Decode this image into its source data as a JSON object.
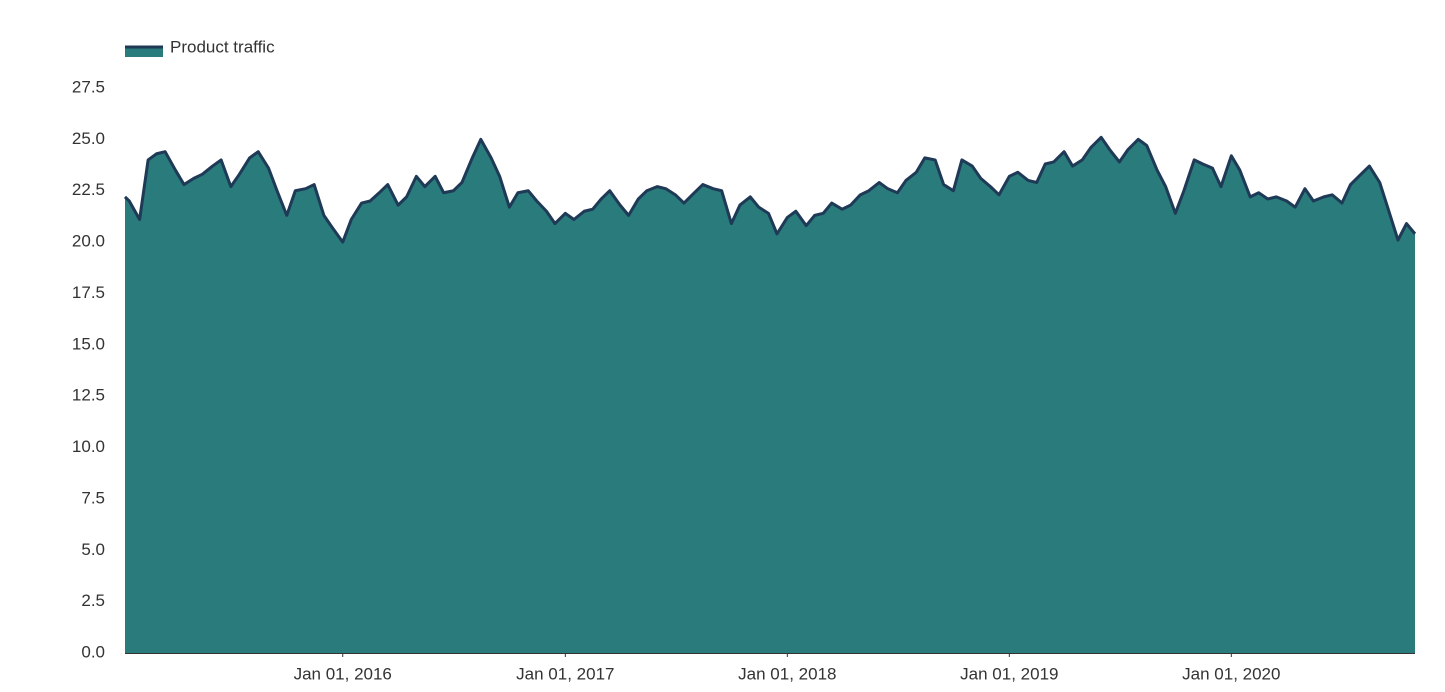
{
  "chart_data": {
    "type": "area",
    "legend": "top-left",
    "ylim": [
      0,
      27.5
    ],
    "yticks": [
      {
        "value": 0,
        "label": "0.0"
      },
      2.5,
      {
        "value": 5,
        "label": "5.0"
      },
      7.5,
      {
        "value": 10,
        "label": "10.0"
      },
      12.5,
      {
        "value": 15,
        "label": "15.0"
      },
      17.5,
      {
        "value": 20,
        "label": "20.0"
      },
      22.5,
      {
        "value": 25,
        "label": "25.0"
      },
      27.5
    ],
    "xlim": [
      "2015-01-08",
      "2020-10-29"
    ],
    "xticks": [
      {
        "value": "2016-01-01",
        "label": "Jan 01, 2016"
      },
      {
        "value": "2017-01-01",
        "label": "Jan 01, 2017"
      },
      {
        "value": "2018-01-01",
        "label": "Jan 01, 2018"
      },
      {
        "value": "2019-01-01",
        "label": "Jan 01, 2019"
      },
      {
        "value": "2020-01-01",
        "label": "Jan 01, 2020"
      }
    ],
    "x": [
      "2015-01-08",
      "2015-01-15",
      "2015-02-01",
      "2015-02-15",
      "2015-03-01",
      "2015-03-15",
      "2015-04-01",
      "2015-04-15",
      "2015-05-01",
      "2015-05-15",
      "2015-06-01",
      "2015-06-15",
      "2015-07-01",
      "2015-07-15",
      "2015-08-01",
      "2015-08-15",
      "2015-09-01",
      "2015-09-15",
      "2015-10-01",
      "2015-10-15",
      "2015-11-01",
      "2015-11-15",
      "2015-12-01",
      "2015-12-15",
      "2016-01-01",
      "2016-01-15",
      "2016-02-01",
      "2016-02-15",
      "2016-03-01",
      "2016-03-15",
      "2016-04-01",
      "2016-04-15",
      "2016-05-01",
      "2016-05-15",
      "2016-06-01",
      "2016-06-15",
      "2016-07-01",
      "2016-07-15",
      "2016-08-01",
      "2016-08-15",
      "2016-09-01",
      "2016-09-15",
      "2016-10-01",
      "2016-10-15",
      "2016-11-01",
      "2016-11-15",
      "2016-12-01",
      "2016-12-15",
      "2017-01-01",
      "2017-01-15",
      "2017-02-01",
      "2017-02-15",
      "2017-03-01",
      "2017-03-15",
      "2017-04-01",
      "2017-04-15",
      "2017-05-01",
      "2017-05-15",
      "2017-06-01",
      "2017-06-15",
      "2017-07-01",
      "2017-07-15",
      "2017-08-01",
      "2017-08-15",
      "2017-09-01",
      "2017-09-15",
      "2017-10-01",
      "2017-10-15",
      "2017-11-01",
      "2017-11-15",
      "2017-12-01",
      "2017-12-15",
      "2018-01-01",
      "2018-01-15",
      "2018-02-01",
      "2018-02-15",
      "2018-03-01",
      "2018-03-15",
      "2018-04-01",
      "2018-04-15",
      "2018-05-01",
      "2018-05-15",
      "2018-06-01",
      "2018-06-15",
      "2018-07-01",
      "2018-07-15",
      "2018-08-01",
      "2018-08-15",
      "2018-09-01",
      "2018-09-15",
      "2018-10-01",
      "2018-10-15",
      "2018-11-01",
      "2018-11-15",
      "2018-12-01",
      "2018-12-15",
      "2019-01-01",
      "2019-01-15",
      "2019-02-01",
      "2019-02-15",
      "2019-03-01",
      "2019-03-15",
      "2019-04-01",
      "2019-04-15",
      "2019-05-01",
      "2019-05-15",
      "2019-06-01",
      "2019-06-15",
      "2019-07-01",
      "2019-07-15",
      "2019-08-01",
      "2019-08-15",
      "2019-09-01",
      "2019-09-15",
      "2019-10-01",
      "2019-10-15",
      "2019-11-01",
      "2019-11-15",
      "2019-12-01",
      "2019-12-15",
      "2020-01-01",
      "2020-01-15",
      "2020-02-01",
      "2020-02-15",
      "2020-03-01",
      "2020-03-15",
      "2020-04-01",
      "2020-04-15",
      "2020-05-01",
      "2020-05-15",
      "2020-06-01",
      "2020-06-15",
      "2020-07-01",
      "2020-07-15",
      "2020-08-01",
      "2020-08-15",
      "2020-09-01",
      "2020-09-15",
      "2020-10-01",
      "2020-10-15",
      "2020-10-29"
    ],
    "series": [
      {
        "name": "Product traffic",
        "color": "#2a7b7b",
        "line_color": "#1e3a56",
        "values": [
          22.2,
          22.0,
          21.1,
          24.0,
          24.3,
          24.4,
          23.5,
          22.8,
          23.1,
          23.3,
          23.7,
          24.0,
          22.7,
          23.3,
          24.1,
          24.4,
          23.6,
          22.5,
          21.3,
          22.5,
          22.6,
          22.8,
          21.3,
          20.7,
          20.0,
          21.1,
          21.9,
          22.0,
          22.4,
          22.8,
          21.8,
          22.2,
          23.2,
          22.7,
          23.2,
          22.4,
          22.5,
          22.9,
          24.1,
          25.0,
          24.1,
          23.2,
          21.7,
          22.4,
          22.5,
          22.0,
          21.5,
          20.9,
          21.4,
          21.1,
          21.5,
          21.6,
          22.1,
          22.5,
          21.8,
          21.3,
          22.1,
          22.5,
          22.7,
          22.6,
          22.3,
          21.9,
          22.4,
          22.8,
          22.6,
          22.5,
          20.9,
          21.8,
          22.2,
          21.7,
          21.4,
          20.4,
          21.2,
          21.5,
          20.8,
          21.3,
          21.4,
          21.9,
          21.6,
          21.8,
          22.3,
          22.5,
          22.9,
          22.6,
          22.4,
          23.0,
          23.4,
          24.1,
          24.0,
          22.8,
          22.5,
          24.0,
          23.7,
          23.1,
          22.7,
          22.3,
          23.2,
          23.4,
          23.0,
          22.9,
          23.8,
          23.9,
          24.4,
          23.7,
          24.0,
          24.6,
          25.1,
          24.5,
          23.9,
          24.5,
          25.0,
          24.7,
          23.5,
          22.7,
          21.4,
          22.5,
          24.0,
          23.8,
          23.6,
          22.7,
          24.2,
          23.5,
          22.2,
          22.4,
          22.1,
          22.2,
          22.0,
          21.7,
          22.6,
          22.0,
          22.2,
          22.3,
          21.9,
          22.8,
          23.3,
          23.7,
          22.9,
          21.6,
          20.1,
          20.9,
          20.4
        ]
      }
    ]
  }
}
